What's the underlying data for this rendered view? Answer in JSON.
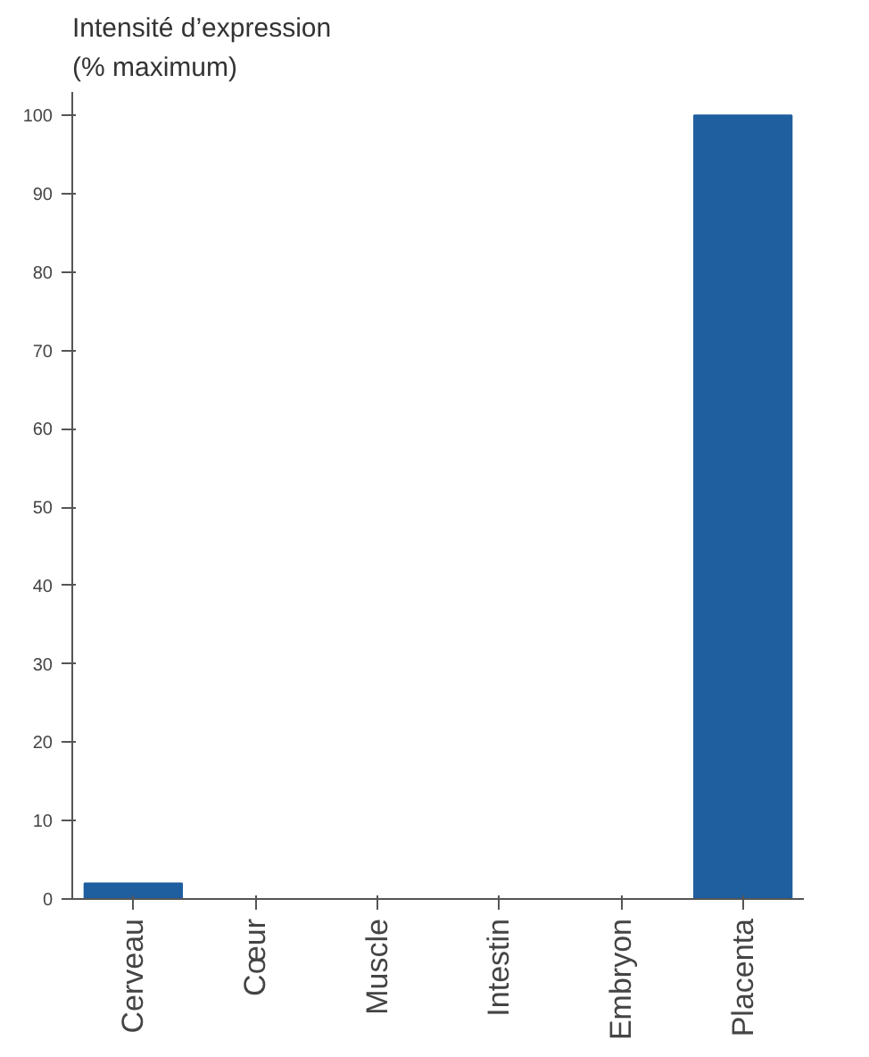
{
  "chart_data": {
    "type": "bar",
    "ylabel": "Intensité d’expression\n(% maximum)",
    "categories": [
      "Cerveau",
      "Cœur",
      "Muscle",
      "Intestin",
      "Embryon",
      "Placenta"
    ],
    "values": [
      2,
      0,
      0,
      0,
      0,
      100
    ],
    "color": "#1f5fa0",
    "ylim": [
      0,
      103
    ],
    "yticks": [
      0,
      10,
      20,
      30,
      40,
      50,
      60,
      70,
      80,
      90,
      100
    ],
    "grid": false
  }
}
